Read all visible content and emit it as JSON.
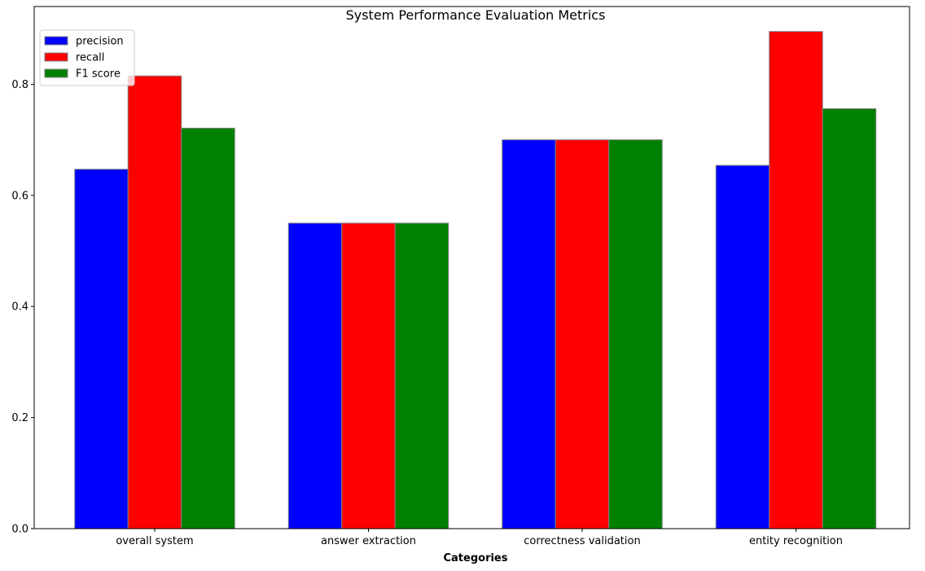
{
  "chart_data": {
    "type": "bar",
    "title": "System Performance Evaluation Metrics",
    "xlabel": "Categories",
    "ylabel": "",
    "ylim": [
      0,
      0.94
    ],
    "yticks": [
      0.0,
      0.2,
      0.4,
      0.6,
      0.8
    ],
    "ytick_labels": [
      "0.0",
      "0.2",
      "0.4",
      "0.6",
      "0.8"
    ],
    "categories": [
      "overall system",
      "answer extraction",
      "correctness validation",
      "entity recognition"
    ],
    "series": [
      {
        "name": "precision",
        "color": "#0000ff",
        "values": [
          0.647,
          0.55,
          0.7,
          0.654
        ]
      },
      {
        "name": "recall",
        "color": "#ff0000",
        "values": [
          0.815,
          0.55,
          0.7,
          0.895
        ]
      },
      {
        "name": "F1 score",
        "color": "#008000",
        "values": [
          0.721,
          0.55,
          0.7,
          0.756
        ]
      }
    ],
    "bar_edge_color": "#808080",
    "grid": false,
    "legend_position": "upper left"
  }
}
